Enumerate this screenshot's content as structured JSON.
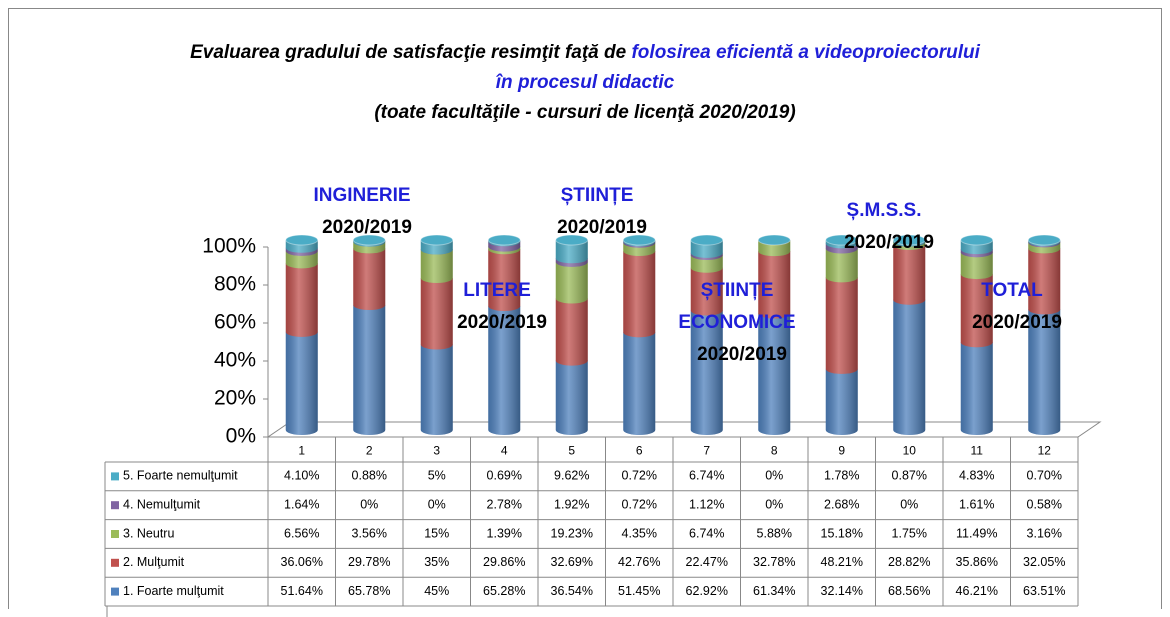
{
  "chart_data": {
    "type": "bar",
    "stacked": true,
    "title": "Evaluarea gradului de satisfacţie resimţit faţă de",
    "title_highlight": "folosirea eficientă a videoproiectorului în procesul didactic",
    "subtitle": "(toate facultăţile - cursuri de licenţă 2020/2019)",
    "categories": [
      "1",
      "2",
      "3",
      "4",
      "5",
      "6",
      "7",
      "8",
      "9",
      "10",
      "11",
      "12"
    ],
    "ylim": [
      0,
      100
    ],
    "yticks": [
      {
        "value": 0,
        "label": "0%"
      },
      {
        "value": 20,
        "label": "20%"
      },
      {
        "value": 40,
        "label": "40%"
      },
      {
        "value": 60,
        "label": "60%"
      },
      {
        "value": 80,
        "label": "80%"
      },
      {
        "value": 100,
        "label": "100%"
      }
    ],
    "series": [
      {
        "name": "1. Foarte mulţumit",
        "color": "#4f81bd",
        "values": [
          51.64,
          65.78,
          45,
          65.28,
          36.54,
          51.45,
          62.92,
          61.34,
          32.14,
          68.56,
          46.21,
          63.51
        ],
        "value_labels": [
          "51.64%",
          "65.78%",
          "45%",
          "65.28%",
          "36.54%",
          "51.45%",
          "62.92%",
          "61.34%",
          "32.14%",
          "68.56%",
          "46.21%",
          "63.51%"
        ]
      },
      {
        "name": "2. Mulţumit",
        "color": "#c0504d",
        "values": [
          36.06,
          29.78,
          35,
          29.86,
          32.69,
          42.76,
          22.47,
          32.78,
          48.21,
          28.82,
          35.86,
          32.05
        ],
        "value_labels": [
          "36.06%",
          "29.78%",
          "35%",
          "29.86%",
          "32.69%",
          "42.76%",
          "22.47%",
          "32.78%",
          "48.21%",
          "28.82%",
          "35.86%",
          "32.05%"
        ]
      },
      {
        "name": "3. Neutru",
        "color": "#9bbb59",
        "values": [
          6.56,
          3.56,
          15,
          1.39,
          19.23,
          4.35,
          6.74,
          5.88,
          15.18,
          1.75,
          11.49,
          3.16
        ],
        "value_labels": [
          "6.56%",
          "3.56%",
          "15%",
          "1.39%",
          "19.23%",
          "4.35%",
          "6.74%",
          "5.88%",
          "15.18%",
          "1.75%",
          "11.49%",
          "3.16%"
        ]
      },
      {
        "name": "4. Nemulţumit",
        "color": "#8064a2",
        "values": [
          1.64,
          0,
          0,
          2.78,
          1.92,
          0.72,
          1.12,
          0,
          2.68,
          0,
          1.61,
          0.58
        ],
        "value_labels": [
          "1.64%",
          "0%",
          "0%",
          "2.78%",
          "1.92%",
          "0.72%",
          "1.12%",
          "0%",
          "2.68%",
          "0%",
          "1.61%",
          "0.58%"
        ]
      },
      {
        "name": "5. Foarte nemulţumit",
        "color": "#4bacc6",
        "values": [
          4.1,
          0.88,
          5,
          0.69,
          9.62,
          0.72,
          6.74,
          0,
          1.78,
          0.87,
          4.83,
          0.7
        ],
        "value_labels": [
          "4.10%",
          "0.88%",
          "5%",
          "0.69%",
          "9.62%",
          "0.72%",
          "6.74%",
          "0%",
          "1.78%",
          "0.87%",
          "4.83%",
          "0.70%"
        ]
      }
    ],
    "annotations": [
      {
        "lines": [
          "INGINERIE",
          "2020/2019"
        ]
      },
      {
        "lines": [
          "LITERE",
          "2020/2019"
        ]
      },
      {
        "lines": [
          "ȘTIINȚE",
          "2020/2019"
        ]
      },
      {
        "lines": [
          "ȘTIINȚE",
          "ECONOMICE",
          "2020/2019"
        ]
      },
      {
        "lines": [
          "Ș.M.S.S.",
          "2020/2019"
        ]
      },
      {
        "lines": [
          "TOTAL",
          "2020/2019"
        ]
      }
    ]
  }
}
